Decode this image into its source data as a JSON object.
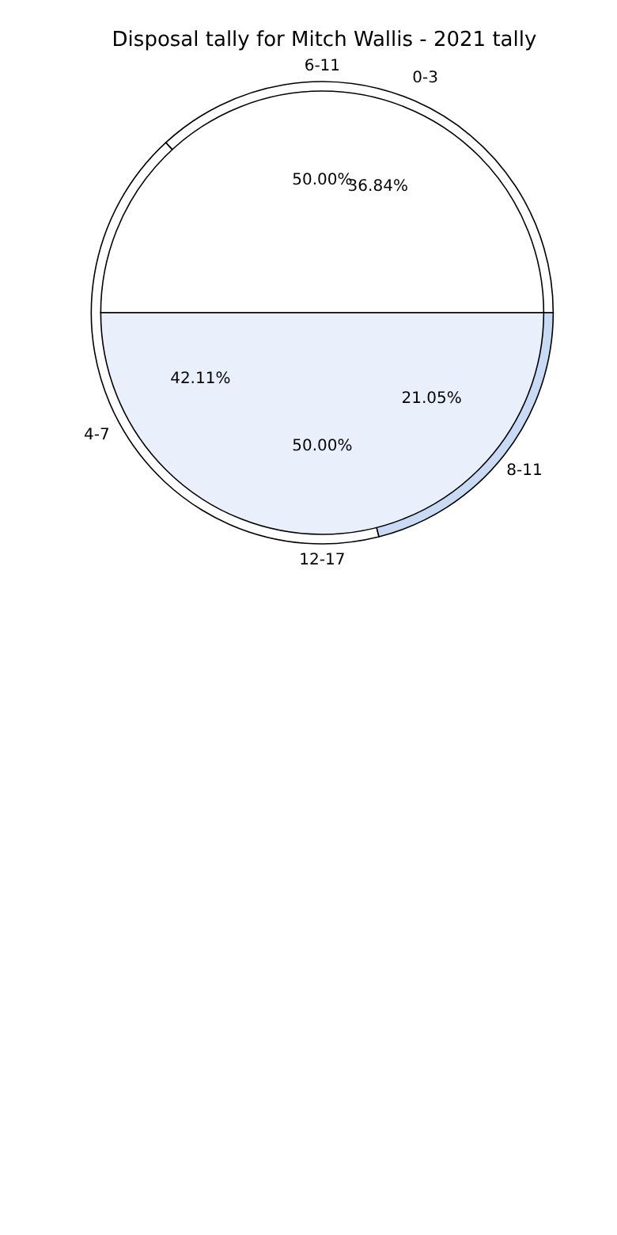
{
  "chart_data": [
    {
      "type": "pie",
      "title": "Disposal tally for Mitch Wallis - 2021 tally",
      "categories": [
        "0-3",
        "4-7",
        "8-11"
      ],
      "values": [
        36.84,
        42.11,
        21.05
      ],
      "value_labels": [
        "36.84%",
        "42.11%",
        "21.05%"
      ],
      "colors": [
        "#ffffff",
        "#ffffff",
        "#c9daf5"
      ]
    },
    {
      "type": "pie",
      "categories": [
        "6-11",
        "12-17"
      ],
      "values": [
        50,
        50
      ],
      "value_labels": [
        "50.00%",
        "50.00%"
      ],
      "colors": [
        "#ffffff",
        "#eaf0fb"
      ]
    }
  ]
}
